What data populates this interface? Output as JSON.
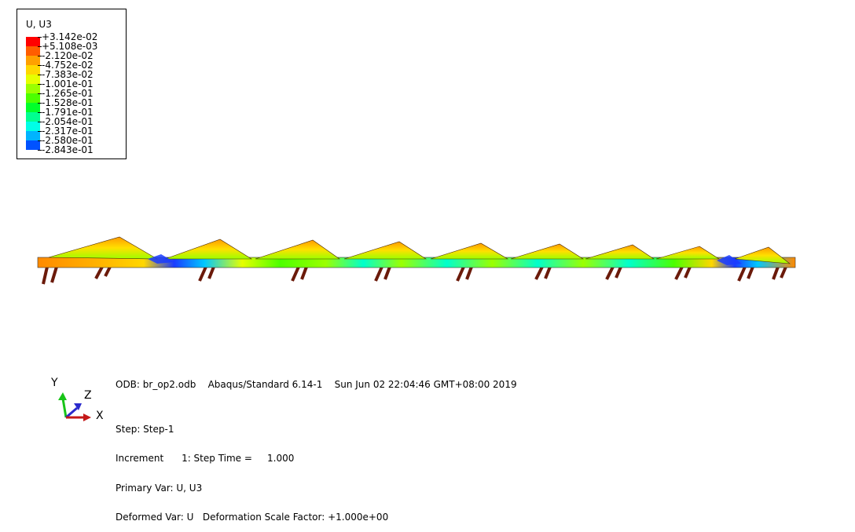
{
  "legend": {
    "title": "U, U3",
    "labels": [
      "+3.142e-02",
      "+5.108e-03",
      "-2.120e-02",
      "-4.752e-02",
      "-7.383e-02",
      "-1.001e-01",
      "-1.265e-01",
      "-1.528e-01",
      "-1.791e-01",
      "-2.054e-01",
      "-2.317e-01",
      "-2.580e-01",
      "-2.843e-01"
    ],
    "colors": [
      "#ff0000",
      "#ff5d00",
      "#ffa000",
      "#ffd700",
      "#e6ff00",
      "#9bff00",
      "#4cff00",
      "#00ff2a",
      "#00ff90",
      "#00ffe6",
      "#00b4ff",
      "#0052ff",
      "#0000ff"
    ]
  },
  "triad": {
    "y_label": "Y",
    "z_label": "Z",
    "x_label": "X"
  },
  "info": {
    "odb_line": "ODB: br_op2.odb    Abaqus/Standard 6.14-1    Sun Jun 02 22:04:46 GMT+08:00 2019",
    "step": "Step: Step-1",
    "increment": "Increment      1: Step Time =     1.000",
    "primary_var": "Primary Var: U, U3",
    "deformed_var": "Deformed Var: U   Deformation Scale Factor: +1.000e+00"
  }
}
